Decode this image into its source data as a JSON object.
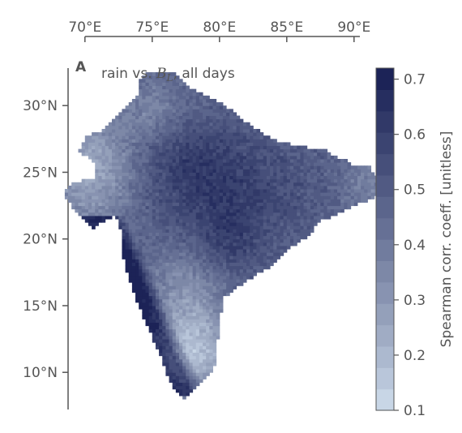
{
  "chart_data": {
    "type": "heatmap",
    "panel_letter": "A",
    "title_prefix": "rain vs. ",
    "title_var": "B",
    "title_sub": "L",
    "title_suffix": ", all days",
    "x_ticks": [
      "70°E",
      "75°E",
      "80°E",
      "85°E",
      "90°E"
    ],
    "x_tick_values": [
      70,
      75,
      80,
      85,
      90
    ],
    "y_ticks": [
      "30°N",
      "25°N",
      "20°N",
      "15°N",
      "10°N"
    ],
    "y_tick_values": [
      30,
      25,
      20,
      15,
      10
    ],
    "xlim": [
      66.5,
      90.5
    ],
    "ylim": [
      7.5,
      33
    ],
    "colorbar": {
      "label": "Spearman corr. coeff. [unitless]",
      "ticks": [
        "0.1",
        "0.2",
        "0.3",
        "0.4",
        "0.5",
        "0.6",
        "0.7"
      ],
      "tick_values": [
        0.1,
        0.2,
        0.3,
        0.4,
        0.5,
        0.6,
        0.7
      ],
      "range": [
        0.1,
        0.72
      ],
      "levels": 16,
      "colors": [
        "#c8d6e6",
        "#1c2357"
      ]
    },
    "region": "India"
  }
}
